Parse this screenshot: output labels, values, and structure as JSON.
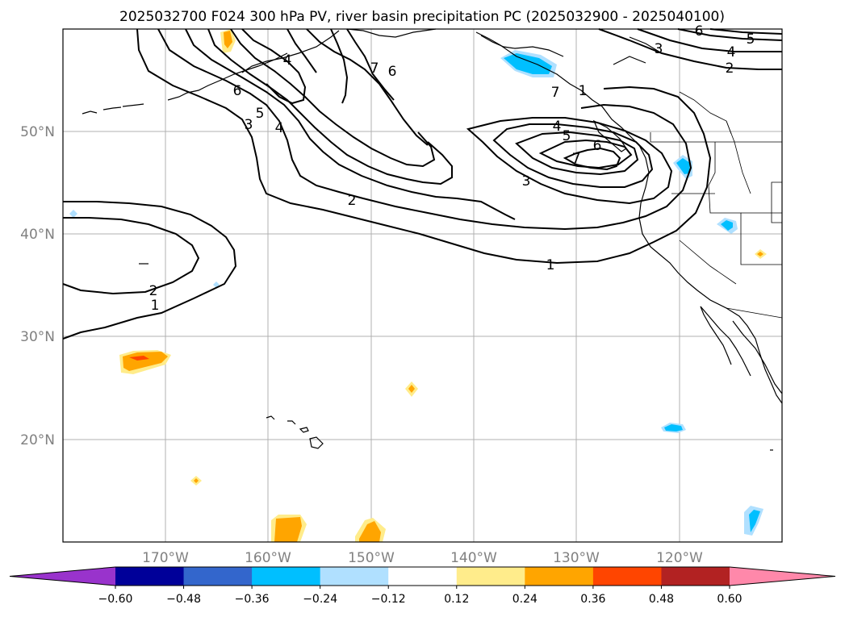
{
  "title": "2025032700 F024 300 hPa PV, river basin precipitation PC (2025032900 - 2025040100)",
  "lat_labels": [
    "50°N",
    "40°N",
    "30°N",
    "20°N"
  ],
  "lon_labels": [
    "170°W",
    "160°W",
    "150°W",
    "140°W",
    "130°W",
    "120°W"
  ],
  "contour_labels": [
    "1",
    "2",
    "3",
    "4",
    "5",
    "6",
    "7"
  ],
  "colorbar": {
    "ticks": [
      "−0.60",
      "−0.48",
      "−0.36",
      "−0.24",
      "−0.12",
      "0.12",
      "0.24",
      "0.36",
      "0.48",
      "0.60"
    ],
    "colors": [
      "#9933cc",
      "#000099",
      "#3366cc",
      "#00bfff",
      "#b0e0ff",
      "#ffffff",
      "#ffec8b",
      "#ffa500",
      "#ff4500",
      "#b22222",
      "#ff88aa"
    ]
  },
  "map": {
    "projection": "PlateCarree",
    "lon_range": [
      "180°",
      "110°W"
    ],
    "lat_range": [
      "10°N",
      "60°N"
    ],
    "gridlines": true
  }
}
